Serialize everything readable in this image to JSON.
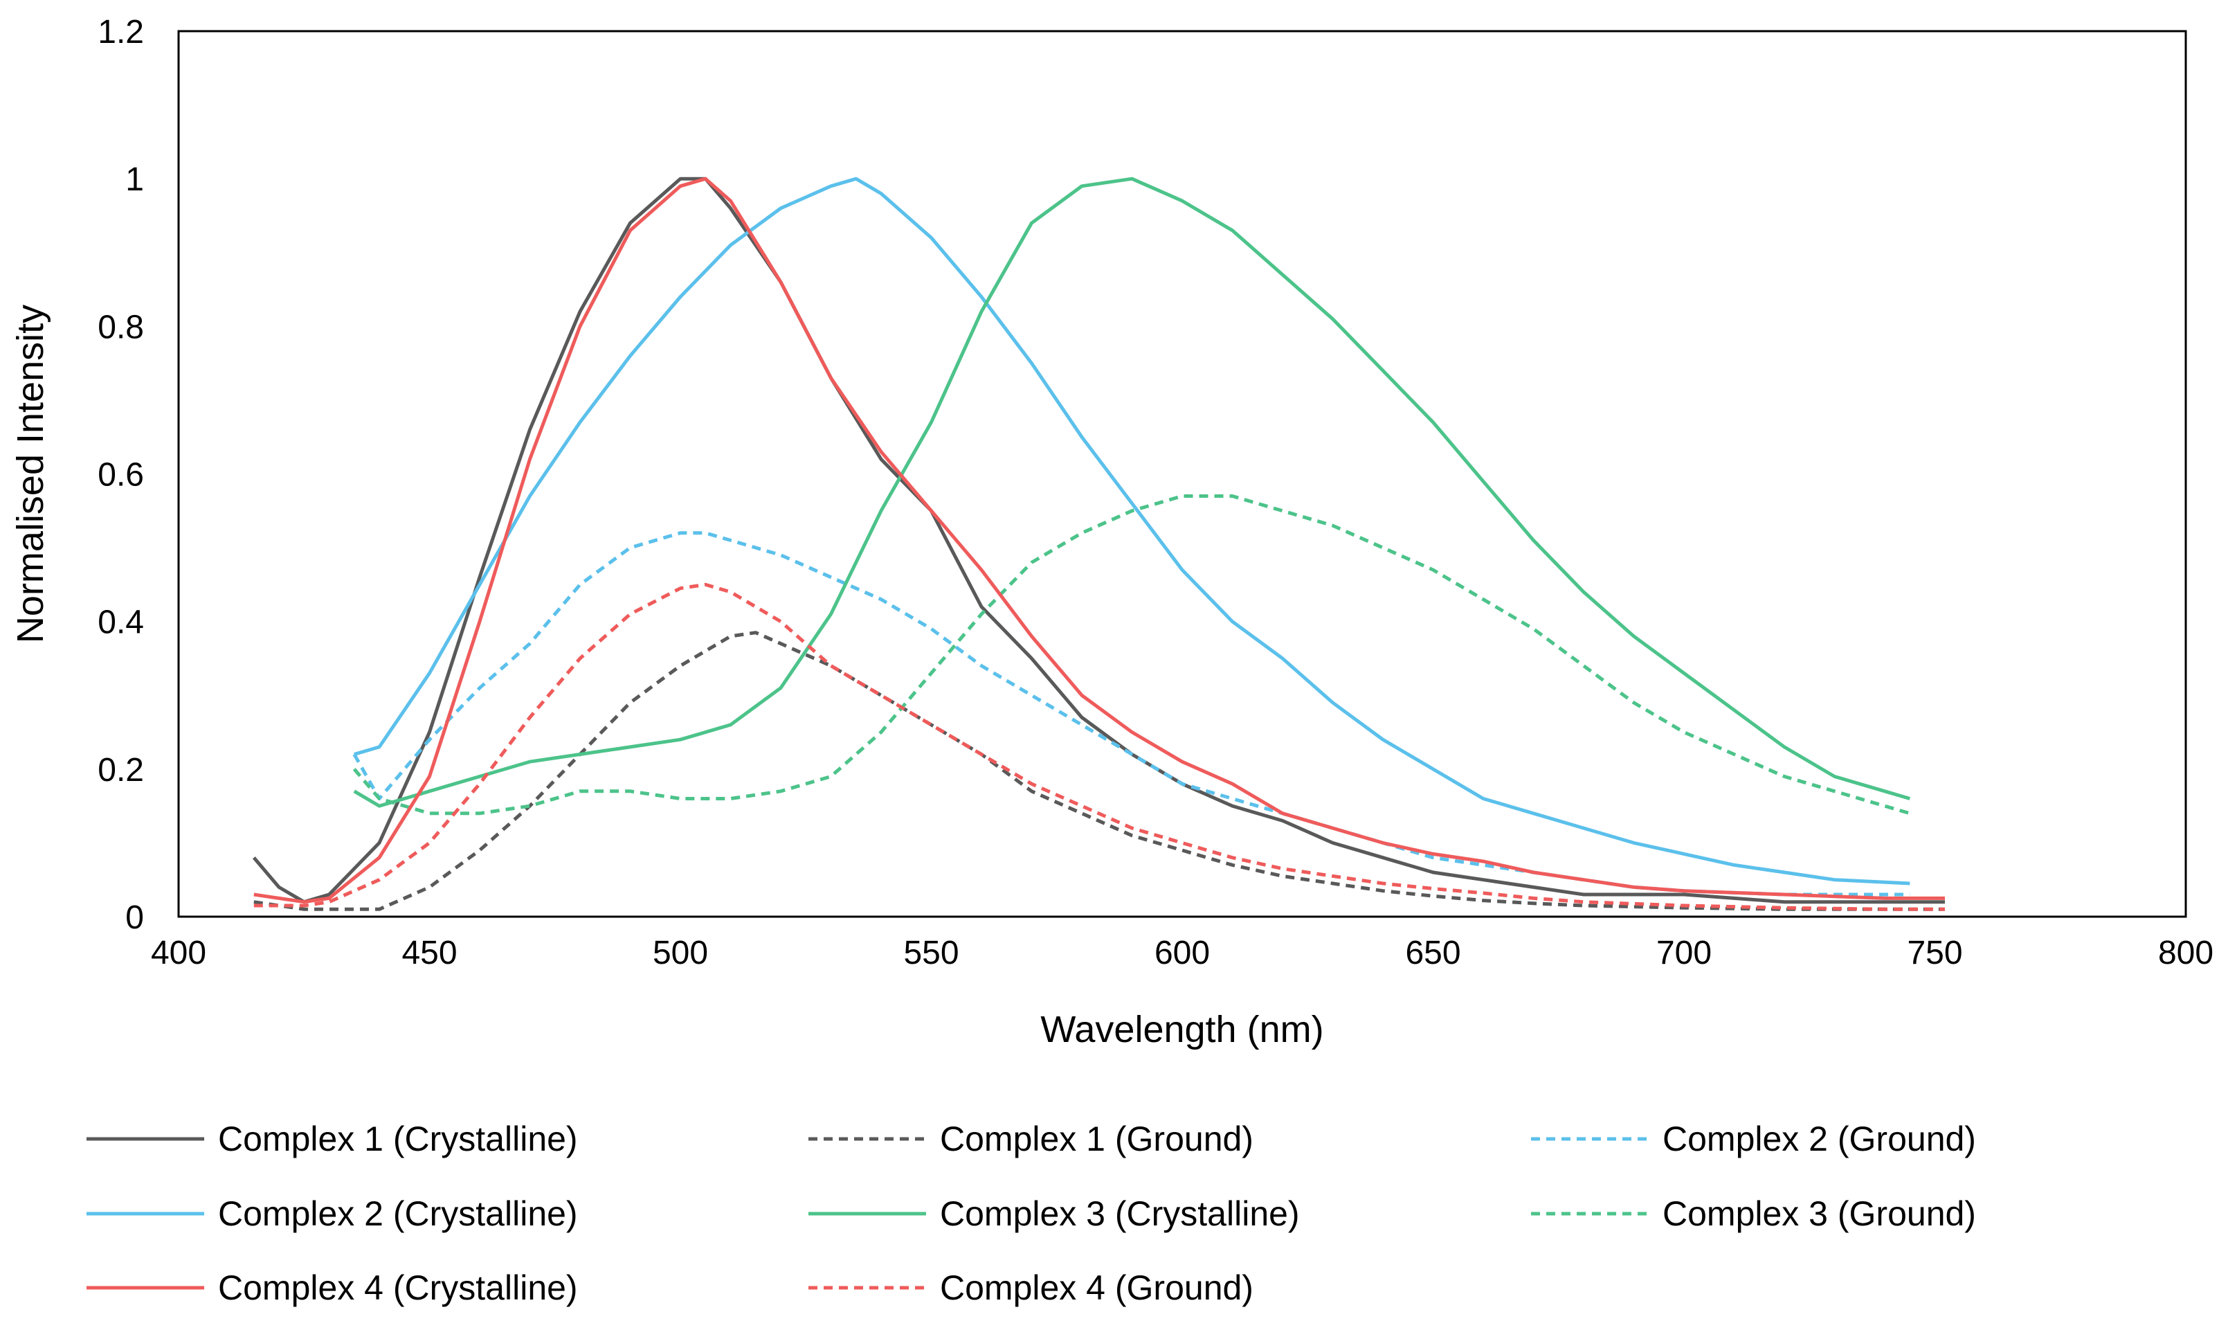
{
  "chart_data": {
    "type": "line",
    "title": "",
    "xlabel": "Wavelength (nm)",
    "ylabel": "Normalised Intensity",
    "xlim": [
      400,
      800
    ],
    "ylim": [
      0,
      1.2
    ],
    "x_ticks": [
      "400",
      "450",
      "500",
      "550",
      "600",
      "650",
      "700",
      "750",
      "800"
    ],
    "y_ticks": [
      "0",
      "0.2",
      "0.4",
      "0.6",
      "0.8",
      "1",
      "1.2"
    ],
    "grid": false,
    "legend_position": "bottom",
    "series": [
      {
        "name": "Complex 1 (Crystalline)",
        "color": "#595959",
        "dash": "solid",
        "points": [
          [
            415,
            0.08
          ],
          [
            420,
            0.04
          ],
          [
            425,
            0.02
          ],
          [
            430,
            0.03
          ],
          [
            440,
            0.1
          ],
          [
            450,
            0.25
          ],
          [
            460,
            0.46
          ],
          [
            470,
            0.66
          ],
          [
            480,
            0.82
          ],
          [
            490,
            0.94
          ],
          [
            500,
            1.0
          ],
          [
            505,
            1.0
          ],
          [
            510,
            0.96
          ],
          [
            520,
            0.86
          ],
          [
            530,
            0.73
          ],
          [
            540,
            0.62
          ],
          [
            550,
            0.55
          ],
          [
            560,
            0.42
          ],
          [
            570,
            0.35
          ],
          [
            580,
            0.27
          ],
          [
            590,
            0.22
          ],
          [
            600,
            0.18
          ],
          [
            610,
            0.15
          ],
          [
            620,
            0.13
          ],
          [
            630,
            0.1
          ],
          [
            640,
            0.08
          ],
          [
            650,
            0.06
          ],
          [
            660,
            0.05
          ],
          [
            670,
            0.04
          ],
          [
            680,
            0.03
          ],
          [
            700,
            0.03
          ],
          [
            720,
            0.02
          ],
          [
            740,
            0.02
          ],
          [
            752,
            0.02
          ]
        ]
      },
      {
        "name": "Complex 1 (Ground)",
        "color": "#595959",
        "dash": "dotted",
        "points": [
          [
            415,
            0.02
          ],
          [
            425,
            0.01
          ],
          [
            435,
            0.01
          ],
          [
            440,
            0.01
          ],
          [
            450,
            0.04
          ],
          [
            460,
            0.09
          ],
          [
            470,
            0.15
          ],
          [
            480,
            0.22
          ],
          [
            490,
            0.29
          ],
          [
            500,
            0.34
          ],
          [
            510,
            0.38
          ],
          [
            515,
            0.385
          ],
          [
            520,
            0.37
          ],
          [
            530,
            0.34
          ],
          [
            540,
            0.3
          ],
          [
            550,
            0.26
          ],
          [
            560,
            0.22
          ],
          [
            570,
            0.17
          ],
          [
            580,
            0.14
          ],
          [
            590,
            0.11
          ],
          [
            600,
            0.09
          ],
          [
            610,
            0.07
          ],
          [
            620,
            0.055
          ],
          [
            630,
            0.045
          ],
          [
            640,
            0.035
          ],
          [
            650,
            0.028
          ],
          [
            660,
            0.022
          ],
          [
            670,
            0.018
          ],
          [
            680,
            0.015
          ],
          [
            700,
            0.012
          ],
          [
            720,
            0.01
          ],
          [
            740,
            0.01
          ],
          [
            752,
            0.01
          ]
        ]
      },
      {
        "name": "Complex 2 (Ground)",
        "color": "#5bc0eb",
        "dash": "dotted",
        "points": [
          [
            435,
            0.22
          ],
          [
            440,
            0.16
          ],
          [
            445,
            0.2
          ],
          [
            450,
            0.24
          ],
          [
            460,
            0.31
          ],
          [
            470,
            0.37
          ],
          [
            480,
            0.45
          ],
          [
            490,
            0.5
          ],
          [
            500,
            0.52
          ],
          [
            505,
            0.52
          ],
          [
            510,
            0.51
          ],
          [
            520,
            0.49
          ],
          [
            530,
            0.46
          ],
          [
            540,
            0.43
          ],
          [
            550,
            0.39
          ],
          [
            560,
            0.34
          ],
          [
            570,
            0.3
          ],
          [
            580,
            0.26
          ],
          [
            590,
            0.22
          ],
          [
            600,
            0.18
          ],
          [
            610,
            0.16
          ],
          [
            620,
            0.14
          ],
          [
            630,
            0.12
          ],
          [
            640,
            0.1
          ],
          [
            650,
            0.08
          ],
          [
            660,
            0.07
          ],
          [
            670,
            0.06
          ],
          [
            680,
            0.05
          ],
          [
            690,
            0.04
          ],
          [
            700,
            0.035
          ],
          [
            720,
            0.03
          ],
          [
            745,
            0.03
          ]
        ]
      },
      {
        "name": "Complex 2 (Crystalline)",
        "color": "#5bc0eb",
        "dash": "solid",
        "points": [
          [
            435,
            0.22
          ],
          [
            440,
            0.23
          ],
          [
            445,
            0.28
          ],
          [
            450,
            0.33
          ],
          [
            460,
            0.45
          ],
          [
            470,
            0.57
          ],
          [
            480,
            0.67
          ],
          [
            490,
            0.76
          ],
          [
            500,
            0.84
          ],
          [
            510,
            0.91
          ],
          [
            520,
            0.96
          ],
          [
            530,
            0.99
          ],
          [
            535,
            1.0
          ],
          [
            540,
            0.98
          ],
          [
            550,
            0.92
          ],
          [
            560,
            0.84
          ],
          [
            570,
            0.75
          ],
          [
            580,
            0.65
          ],
          [
            590,
            0.56
          ],
          [
            600,
            0.47
          ],
          [
            610,
            0.4
          ],
          [
            620,
            0.35
          ],
          [
            630,
            0.29
          ],
          [
            640,
            0.24
          ],
          [
            650,
            0.2
          ],
          [
            660,
            0.16
          ],
          [
            670,
            0.14
          ],
          [
            680,
            0.12
          ],
          [
            690,
            0.1
          ],
          [
            700,
            0.085
          ],
          [
            710,
            0.07
          ],
          [
            720,
            0.06
          ],
          [
            730,
            0.05
          ],
          [
            745,
            0.045
          ]
        ]
      },
      {
        "name": "Complex 3 (Crystalline)",
        "color": "#4cc38a",
        "dash": "solid",
        "points": [
          [
            435,
            0.17
          ],
          [
            440,
            0.15
          ],
          [
            445,
            0.16
          ],
          [
            450,
            0.17
          ],
          [
            460,
            0.19
          ],
          [
            470,
            0.21
          ],
          [
            480,
            0.22
          ],
          [
            490,
            0.23
          ],
          [
            500,
            0.24
          ],
          [
            510,
            0.26
          ],
          [
            520,
            0.31
          ],
          [
            530,
            0.41
          ],
          [
            540,
            0.55
          ],
          [
            550,
            0.67
          ],
          [
            560,
            0.82
          ],
          [
            570,
            0.94
          ],
          [
            580,
            0.99
          ],
          [
            590,
            1.0
          ],
          [
            600,
            0.97
          ],
          [
            610,
            0.93
          ],
          [
            620,
            0.87
          ],
          [
            630,
            0.81
          ],
          [
            640,
            0.74
          ],
          [
            650,
            0.67
          ],
          [
            660,
            0.59
          ],
          [
            670,
            0.51
          ],
          [
            680,
            0.44
          ],
          [
            690,
            0.38
          ],
          [
            700,
            0.33
          ],
          [
            710,
            0.28
          ],
          [
            720,
            0.23
          ],
          [
            730,
            0.19
          ],
          [
            740,
            0.17
          ],
          [
            745,
            0.16
          ]
        ]
      },
      {
        "name": "Complex 3 (Ground)",
        "color": "#4cc38a",
        "dash": "dotted",
        "points": [
          [
            435,
            0.2
          ],
          [
            440,
            0.16
          ],
          [
            445,
            0.15
          ],
          [
            450,
            0.14
          ],
          [
            460,
            0.14
          ],
          [
            470,
            0.15
          ],
          [
            480,
            0.17
          ],
          [
            490,
            0.17
          ],
          [
            500,
            0.16
          ],
          [
            510,
            0.16
          ],
          [
            520,
            0.17
          ],
          [
            530,
            0.19
          ],
          [
            540,
            0.25
          ],
          [
            550,
            0.33
          ],
          [
            560,
            0.41
          ],
          [
            570,
            0.48
          ],
          [
            580,
            0.52
          ],
          [
            590,
            0.55
          ],
          [
            600,
            0.57
          ],
          [
            610,
            0.57
          ],
          [
            620,
            0.55
          ],
          [
            630,
            0.53
          ],
          [
            640,
            0.5
          ],
          [
            650,
            0.47
          ],
          [
            660,
            0.43
          ],
          [
            670,
            0.39
          ],
          [
            680,
            0.34
          ],
          [
            690,
            0.29
          ],
          [
            700,
            0.25
          ],
          [
            710,
            0.22
          ],
          [
            720,
            0.19
          ],
          [
            730,
            0.17
          ],
          [
            740,
            0.15
          ],
          [
            745,
            0.14
          ]
        ]
      },
      {
        "name": "Complex 4 (Crystalline)",
        "color": "#ef5b5b",
        "dash": "solid",
        "points": [
          [
            415,
            0.03
          ],
          [
            420,
            0.025
          ],
          [
            425,
            0.02
          ],
          [
            430,
            0.025
          ],
          [
            440,
            0.08
          ],
          [
            450,
            0.19
          ],
          [
            460,
            0.4
          ],
          [
            470,
            0.62
          ],
          [
            480,
            0.8
          ],
          [
            490,
            0.93
          ],
          [
            500,
            0.99
          ],
          [
            505,
            1.0
          ],
          [
            510,
            0.97
          ],
          [
            520,
            0.86
          ],
          [
            530,
            0.73
          ],
          [
            540,
            0.63
          ],
          [
            550,
            0.55
          ],
          [
            560,
            0.47
          ],
          [
            570,
            0.38
          ],
          [
            580,
            0.3
          ],
          [
            590,
            0.25
          ],
          [
            600,
            0.21
          ],
          [
            610,
            0.18
          ],
          [
            620,
            0.14
          ],
          [
            630,
            0.12
          ],
          [
            640,
            0.1
          ],
          [
            650,
            0.085
          ],
          [
            660,
            0.075
          ],
          [
            670,
            0.06
          ],
          [
            680,
            0.05
          ],
          [
            690,
            0.04
          ],
          [
            700,
            0.035
          ],
          [
            720,
            0.03
          ],
          [
            740,
            0.025
          ],
          [
            752,
            0.025
          ]
        ]
      },
      {
        "name": "Complex 4 (Ground)",
        "color": "#ef5b5b",
        "dash": "dotted",
        "points": [
          [
            415,
            0.015
          ],
          [
            425,
            0.015
          ],
          [
            430,
            0.02
          ],
          [
            440,
            0.05
          ],
          [
            450,
            0.1
          ],
          [
            460,
            0.18
          ],
          [
            470,
            0.27
          ],
          [
            480,
            0.35
          ],
          [
            490,
            0.41
          ],
          [
            500,
            0.445
          ],
          [
            505,
            0.45
          ],
          [
            510,
            0.44
          ],
          [
            520,
            0.4
          ],
          [
            530,
            0.34
          ],
          [
            540,
            0.3
          ],
          [
            550,
            0.26
          ],
          [
            560,
            0.22
          ],
          [
            570,
            0.18
          ],
          [
            580,
            0.15
          ],
          [
            590,
            0.12
          ],
          [
            600,
            0.1
          ],
          [
            610,
            0.08
          ],
          [
            620,
            0.065
          ],
          [
            630,
            0.055
          ],
          [
            640,
            0.045
          ],
          [
            650,
            0.038
          ],
          [
            660,
            0.032
          ],
          [
            670,
            0.025
          ],
          [
            680,
            0.02
          ],
          [
            700,
            0.015
          ],
          [
            720,
            0.012
          ],
          [
            740,
            0.01
          ],
          [
            752,
            0.01
          ]
        ]
      }
    ]
  }
}
